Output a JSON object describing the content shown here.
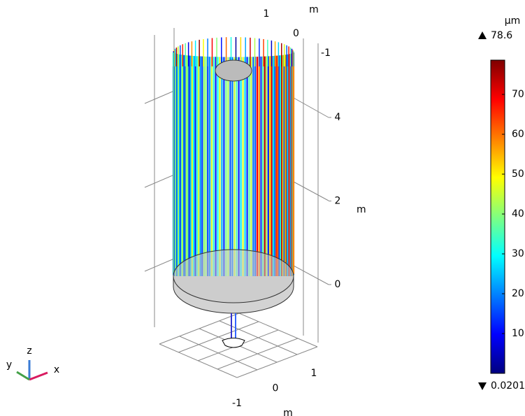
{
  "chart_data": {
    "type": "surface3d",
    "color_unit": "µm",
    "color_max": 78.6,
    "color_min": 0.0201,
    "colorbar_ticks": [
      10,
      20,
      30,
      40,
      50,
      60,
      70
    ],
    "zticks": [
      0,
      2,
      4
    ],
    "z_label": "m",
    "yticks": [
      -1,
      0,
      1
    ],
    "y_label": "m",
    "xticks": [
      -1,
      0,
      1
    ],
    "x_label": "m",
    "triad": {
      "x": "x",
      "y": "y",
      "z": "z"
    }
  }
}
